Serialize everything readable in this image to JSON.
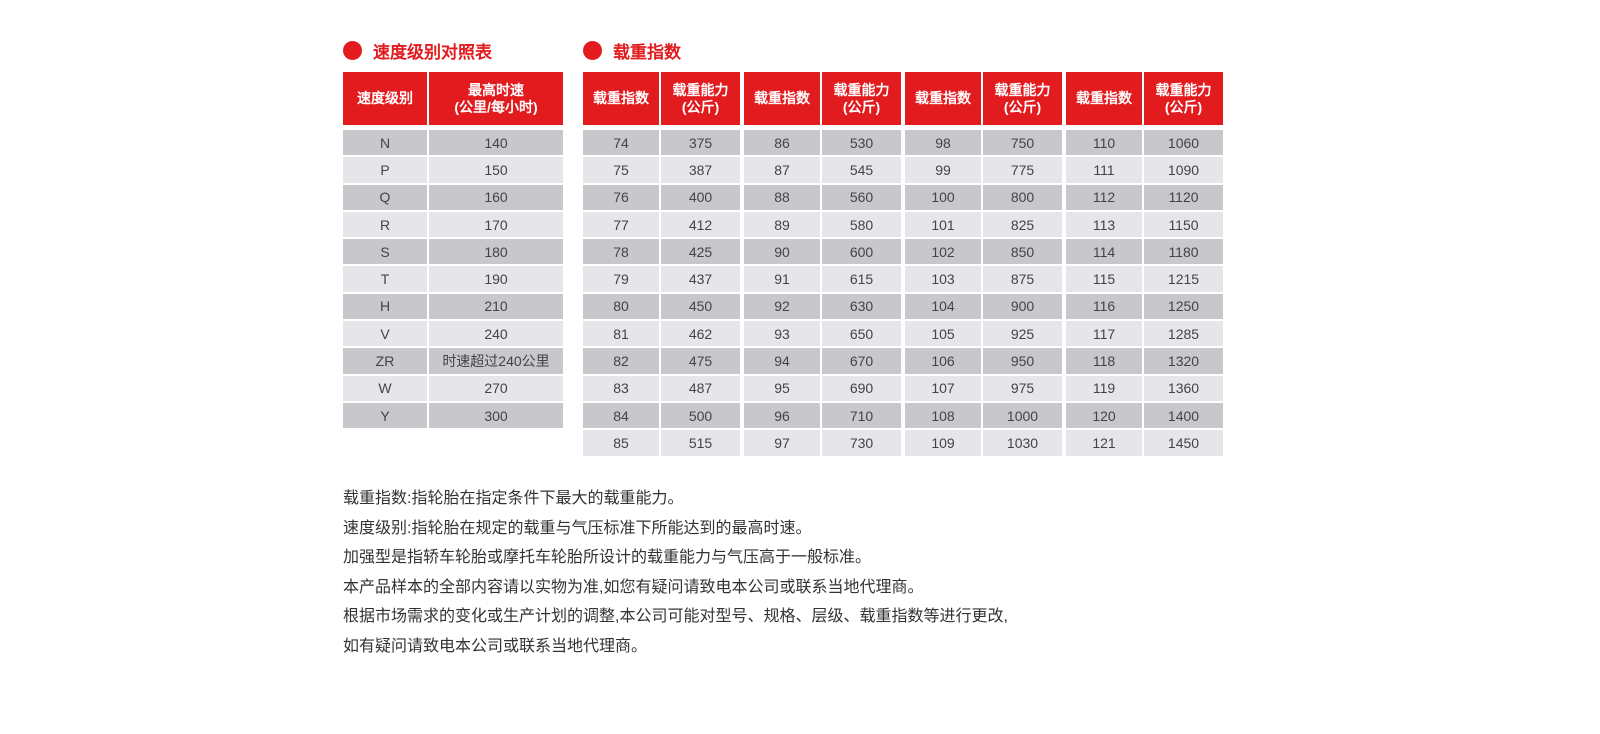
{
  "speed_section": {
    "title": "速度级别对照表",
    "headers": [
      "速度级别",
      "最高时速",
      "(公里/每小时)"
    ],
    "rows": [
      [
        "N",
        "140"
      ],
      [
        "P",
        "150"
      ],
      [
        "Q",
        "160"
      ],
      [
        "R",
        "170"
      ],
      [
        "S",
        "180"
      ],
      [
        "T",
        "190"
      ],
      [
        "H",
        "210"
      ],
      [
        "V",
        "240"
      ],
      [
        "ZR",
        "时速超过240公里"
      ],
      [
        "W",
        "270"
      ],
      [
        "Y",
        "300"
      ]
    ]
  },
  "load_section": {
    "title": "载重指数",
    "headers": [
      "载重指数",
      "载重能力",
      "(公斤)"
    ],
    "tables": [
      [
        [
          "74",
          "375"
        ],
        [
          "75",
          "387"
        ],
        [
          "76",
          "400"
        ],
        [
          "77",
          "412"
        ],
        [
          "78",
          "425"
        ],
        [
          "79",
          "437"
        ],
        [
          "80",
          "450"
        ],
        [
          "81",
          "462"
        ],
        [
          "82",
          "475"
        ],
        [
          "83",
          "487"
        ],
        [
          "84",
          "500"
        ],
        [
          "85",
          "515"
        ]
      ],
      [
        [
          "86",
          "530"
        ],
        [
          "87",
          "545"
        ],
        [
          "88",
          "560"
        ],
        [
          "89",
          "580"
        ],
        [
          "90",
          "600"
        ],
        [
          "91",
          "615"
        ],
        [
          "92",
          "630"
        ],
        [
          "93",
          "650"
        ],
        [
          "94",
          "670"
        ],
        [
          "95",
          "690"
        ],
        [
          "96",
          "710"
        ],
        [
          "97",
          "730"
        ]
      ],
      [
        [
          "98",
          "750"
        ],
        [
          "99",
          "775"
        ],
        [
          "100",
          "800"
        ],
        [
          "101",
          "825"
        ],
        [
          "102",
          "850"
        ],
        [
          "103",
          "875"
        ],
        [
          "104",
          "900"
        ],
        [
          "105",
          "925"
        ],
        [
          "106",
          "950"
        ],
        [
          "107",
          "975"
        ],
        [
          "108",
          "1000"
        ],
        [
          "109",
          "1030"
        ]
      ],
      [
        [
          "110",
          "1060"
        ],
        [
          "111",
          "1090"
        ],
        [
          "112",
          "1120"
        ],
        [
          "113",
          "1150"
        ],
        [
          "114",
          "1180"
        ],
        [
          "115",
          "1215"
        ],
        [
          "116",
          "1250"
        ],
        [
          "117",
          "1285"
        ],
        [
          "118",
          "1320"
        ],
        [
          "119",
          "1360"
        ],
        [
          "120",
          "1400"
        ],
        [
          "121",
          "1450"
        ]
      ]
    ]
  },
  "notes": [
    "载重指数:指轮胎在指定条件下最大的载重能力。",
    "速度级别:指轮胎在规定的载重与气压标准下所能达到的最高时速。",
    "加强型是指轿车轮胎或摩托车轮胎所设计的载重能力与气压高于一般标准。",
    "本产品样本的全部内容请以实物为准,如您有疑问请致电本公司或联系当地代理商。",
    "根据市场需求的变化或生产计划的调整,本公司可能对型号、规格、层级、载重指数等进行更改,",
    "如有疑问请致电本公司或联系当地代理商。"
  ],
  "colors": {
    "accent": "#e21b1f",
    "row_dark": "#c8c7cb",
    "row_light": "#e6e5e9"
  }
}
